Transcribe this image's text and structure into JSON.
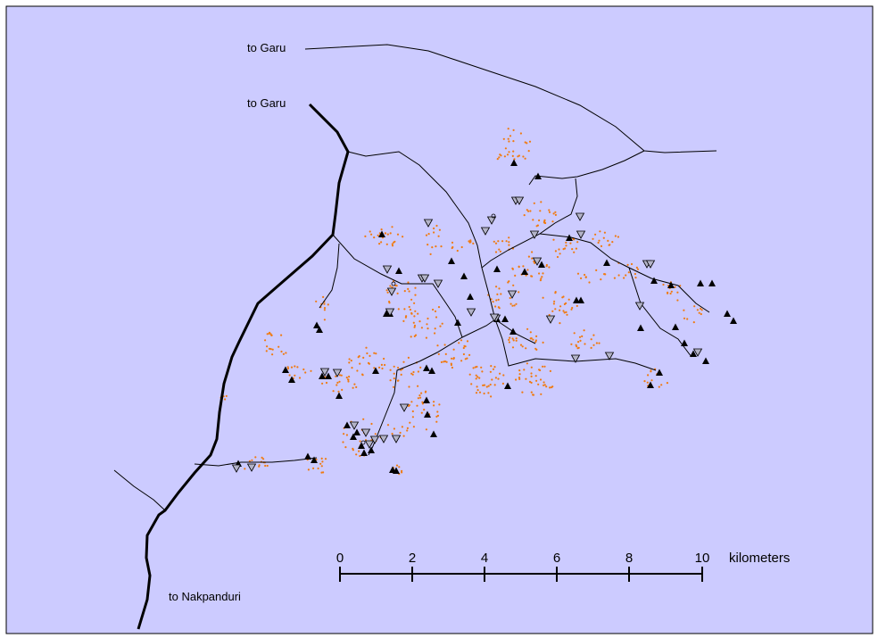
{
  "colors": {
    "background": "#cccbff",
    "settlement": "#f07a10",
    "road": "#000000",
    "marker_fill": "#000000",
    "marker_open_fill": "#b3b3c8"
  },
  "labels": {
    "garu_minor": "to Garu",
    "garu_major": "to Garu",
    "nakpanduri": "to Nakpanduri"
  },
  "scale_bar": {
    "ticks": [
      "0",
      "2",
      "4",
      "6",
      "8",
      "10"
    ],
    "unit": "kilometers"
  },
  "legend_icons": [
    "filled-triangle-icon",
    "open-down-triangle-icon",
    "small-circle-icon"
  ]
}
